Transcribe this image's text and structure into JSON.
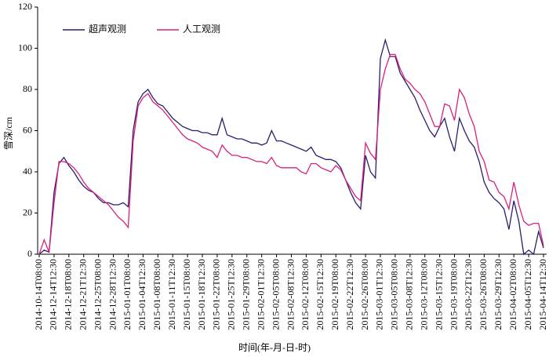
{
  "chart_data": {
    "type": "line",
    "xlabel": "时间(年-月-日-时)",
    "ylabel": "雪深/cm",
    "ylim": [
      0,
      120
    ],
    "yticks": [
      0,
      20,
      40,
      60,
      80,
      100,
      120
    ],
    "legend": "upper left",
    "categories": [
      "2014-10-14T08:00",
      null,
      null,
      "2014-12-14T12:30",
      null,
      null,
      "2014-12-18T08:00",
      null,
      null,
      "2014-12-21T12:30",
      null,
      null,
      "2014-12-25T08:00",
      null,
      null,
      "2014-12-28T12:30",
      null,
      null,
      "2015-01-01T08:00",
      null,
      null,
      "2015-01-04T12:30",
      null,
      null,
      "2015-01-08T08:00",
      null,
      null,
      "2015-01-11T12:30",
      null,
      null,
      "2015-01-15T08:00",
      null,
      null,
      "2015-01-18T12:30",
      null,
      null,
      "2015-01-22T08:00",
      null,
      null,
      "2015-01-25T12:30",
      null,
      null,
      "2015-01-29T08:00",
      null,
      null,
      "2015-02-01T12:30",
      null,
      null,
      "2015-02-05T08:00",
      null,
      null,
      "2015-02-08T12:30",
      null,
      null,
      "2015-02-12T08:00",
      null,
      null,
      "2015-02-15T12:30",
      null,
      null,
      "2015-02-19T08:00",
      null,
      null,
      "2015-02-22T12:30",
      null,
      null,
      "2015-02-26T08:00",
      null,
      null,
      "2015-03-01T12:30",
      null,
      null,
      "2015-03-05T08:00",
      null,
      null,
      "2015-03-08T12:30",
      null,
      null,
      "2015-03-12T08:00",
      null,
      null,
      "2015-03-15T12:30",
      null,
      null,
      "2015-03-19T08:00",
      null,
      null,
      "2015-03-22T12:30",
      null,
      null,
      "2015-03-26T08:00",
      null,
      null,
      "2015-03-29T12:30",
      null,
      null,
      "2015-04-02T08:00",
      null,
      null,
      "2015-04-05T12:30",
      null,
      null,
      "2015-04-14T12:30"
    ],
    "series": [
      {
        "name": "超声观测",
        "color": "#2b1c6f",
        "values": [
          0,
          2,
          1,
          30,
          44,
          47,
          43,
          40,
          36,
          33,
          31,
          30,
          27,
          25,
          25,
          24,
          24,
          25,
          23,
          60,
          74,
          78,
          80,
          76,
          73,
          72,
          69,
          66,
          64,
          62,
          61,
          60,
          60,
          59,
          59,
          58,
          58,
          66,
          58,
          57,
          56,
          56,
          55,
          54,
          54,
          53,
          54,
          60,
          55,
          55,
          54,
          53,
          52,
          51,
          50,
          52,
          48,
          47,
          46,
          46,
          45,
          42,
          36,
          30,
          25,
          22,
          48,
          40,
          37,
          95,
          104,
          96,
          96,
          88,
          84,
          80,
          76,
          70,
          65,
          60,
          57,
          62,
          66,
          57,
          50,
          66,
          60,
          55,
          52,
          45,
          35,
          30,
          27,
          25,
          22,
          12,
          26,
          16,
          0,
          2,
          0,
          11,
          3
        ]
      },
      {
        "name": "人工观测",
        "color": "#d8207f",
        "values": [
          0,
          7,
          1,
          25,
          45,
          45,
          44,
          42,
          39,
          35,
          32,
          30,
          28,
          26,
          24,
          21,
          18,
          16,
          13,
          55,
          72,
          76,
          78,
          74,
          72,
          70,
          67,
          64,
          61,
          58,
          56,
          55,
          54,
          52,
          51,
          50,
          47,
          53,
          50,
          48,
          48,
          47,
          47,
          46,
          45,
          45,
          44,
          47,
          43,
          42,
          42,
          42,
          42,
          40,
          39,
          44,
          44,
          42,
          41,
          40,
          43,
          41,
          36,
          32,
          28,
          26,
          54,
          49,
          46,
          80,
          90,
          97,
          97,
          90,
          85,
          83,
          80,
          78,
          74,
          68,
          62,
          62,
          73,
          72,
          65,
          80,
          76,
          68,
          62,
          50,
          45,
          36,
          35,
          30,
          28,
          22,
          35,
          24,
          16,
          14,
          15,
          15,
          4
        ]
      }
    ]
  }
}
